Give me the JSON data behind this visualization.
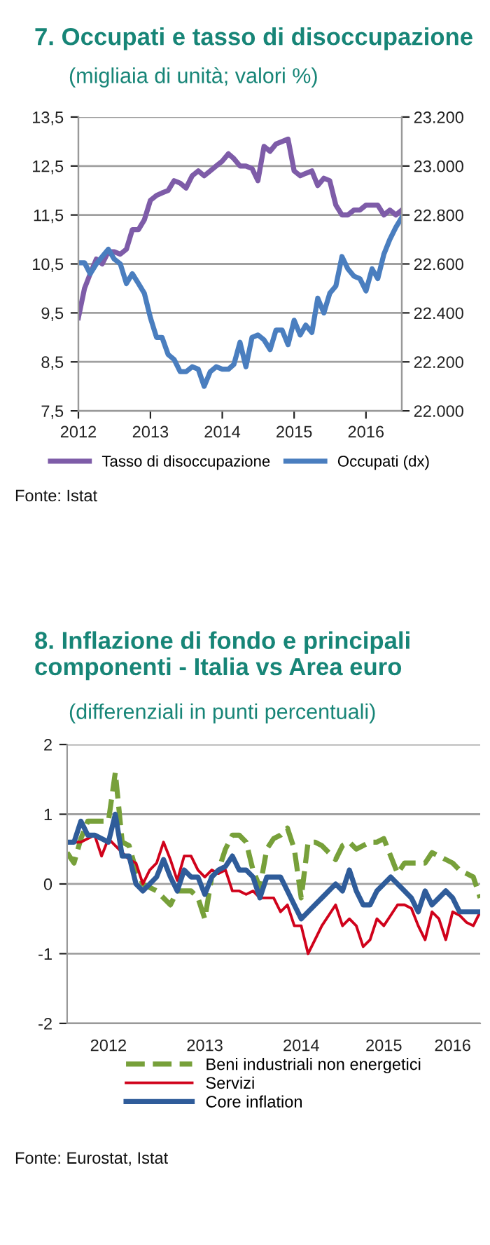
{
  "chart_data": [
    {
      "type": "line",
      "title": "7. Occupati e tasso di disoccupazione",
      "subtitle": "(migliaia di unità; valori %)",
      "x": [
        "2012-01",
        "2012-02",
        "2012-03",
        "2012-04",
        "2012-05",
        "2012-06",
        "2012-07",
        "2012-08",
        "2012-09",
        "2012-10",
        "2012-11",
        "2012-12",
        "2013-01",
        "2013-02",
        "2013-03",
        "2013-04",
        "2013-05",
        "2013-06",
        "2013-07",
        "2013-08",
        "2013-09",
        "2013-10",
        "2013-11",
        "2013-12",
        "2014-01",
        "2014-02",
        "2014-03",
        "2014-04",
        "2014-05",
        "2014-06",
        "2014-07",
        "2014-08",
        "2014-09",
        "2014-10",
        "2014-11",
        "2014-12",
        "2015-01",
        "2015-02",
        "2015-03",
        "2015-04",
        "2015-05",
        "2015-06",
        "2015-07",
        "2015-08",
        "2015-09",
        "2015-10",
        "2015-11",
        "2015-12",
        "2016-01",
        "2016-02",
        "2016-03",
        "2016-04",
        "2016-05",
        "2016-06",
        "2016-07"
      ],
      "series": [
        {
          "name": "Tasso di disoccupazione",
          "color": "#7e5ca8",
          "values": [
            9.4,
            10.0,
            10.3,
            10.6,
            10.5,
            10.75,
            10.75,
            10.7,
            10.8,
            11.2,
            11.2,
            11.4,
            11.8,
            11.9,
            11.95,
            12.0,
            12.2,
            12.15,
            12.05,
            12.3,
            12.4,
            12.3,
            12.4,
            12.5,
            12.6,
            12.75,
            12.65,
            12.5,
            12.5,
            12.45,
            12.2,
            12.9,
            12.8,
            12.95,
            13.0,
            13.05,
            12.4,
            12.3,
            12.35,
            12.4,
            12.1,
            12.25,
            12.2,
            11.7,
            11.5,
            11.5,
            11.6,
            11.6,
            11.7,
            11.7,
            11.7,
            11.5,
            11.6,
            11.5,
            11.6
          ]
        },
        {
          "name": "Occupati (dx)",
          "color": "#4a7ebf",
          "axis": "y2",
          "values": [
            22605,
            22605,
            22560,
            22600,
            22630,
            22660,
            22620,
            22600,
            22520,
            22560,
            22520,
            22480,
            22380,
            22300,
            22300,
            22230,
            22210,
            22160,
            22160,
            22180,
            22170,
            22100,
            22160,
            22180,
            22170,
            22170,
            22190,
            22280,
            22180,
            22300,
            22310,
            22290,
            22250,
            22330,
            22330,
            22270,
            22370,
            22310,
            22350,
            22320,
            22460,
            22400,
            22480,
            22510,
            22630,
            22580,
            22550,
            22540,
            22490,
            22580,
            22540,
            22640,
            22700,
            22750,
            22790
          ]
        }
      ],
      "xlim": [
        "2012-01",
        "2016-07"
      ],
      "xticks": [
        {
          "value": "2012-01",
          "label": "2012"
        },
        {
          "value": "2013-01",
          "label": "2013"
        },
        {
          "value": "2014-01",
          "label": "2014"
        },
        {
          "value": "2015-01",
          "label": "2015"
        },
        {
          "value": "2016-01",
          "label": "2016"
        }
      ],
      "ylim": [
        7.5,
        13.5
      ],
      "yticks": [
        {
          "value": 7.5,
          "label": "7,5"
        },
        {
          "value": 8.5,
          "label": "8,5"
        },
        {
          "value": 9.5,
          "label": "9,5"
        },
        {
          "value": 10.5,
          "label": "10,5"
        },
        {
          "value": 11.5,
          "label": "11,5"
        },
        {
          "value": 12.5,
          "label": "12,5"
        },
        {
          "value": 13.5,
          "label": "13,5"
        }
      ],
      "y2lim": [
        22000,
        23200
      ],
      "y2ticks": [
        {
          "value": 22000,
          "label": "22.000"
        },
        {
          "value": 22200,
          "label": "22.200"
        },
        {
          "value": 22400,
          "label": "22.400"
        },
        {
          "value": 22600,
          "label": "22.600"
        },
        {
          "value": 22800,
          "label": "22.800"
        },
        {
          "value": 23000,
          "label": "23.000"
        },
        {
          "value": 23200,
          "label": "23.200"
        }
      ],
      "grid": "y",
      "legend": "bottom",
      "line_style": "solid",
      "marker": "none",
      "annotations": [
        "Fonte: Istat"
      ]
    },
    {
      "type": "line",
      "title": "8. Inflazione di fondo e principali componenti - Italia vs Area euro",
      "subtitle": "(differenziali in punti percentuali)",
      "categories": [
        null,
        null,
        null,
        null,
        null,
        null,
        "2012",
        null,
        null,
        null,
        null,
        null,
        null,
        null,
        null,
        null,
        null,
        null,
        null,
        null,
        "2013",
        null,
        null,
        null,
        null,
        null,
        null,
        null,
        null,
        null,
        null,
        null,
        null,
        null,
        "2014",
        null,
        null,
        null,
        null,
        null,
        null,
        null,
        null,
        null,
        null,
        null,
        "2015",
        null,
        null,
        null,
        null,
        null,
        null,
        null,
        null,
        null,
        "2016",
        null,
        null,
        null,
        null
      ],
      "series": [
        {
          "name": "Beni industriali non energetici",
          "color": "#77a03a",
          "line_style": "dashed",
          "values": [
            0.45,
            0.3,
            0.65,
            0.9,
            0.9,
            0.9,
            0.9,
            1.6,
            0.6,
            0.55,
            0.2,
            0.0,
            -0.05,
            -0.1,
            -0.2,
            -0.3,
            -0.1,
            -0.1,
            -0.1,
            -0.2,
            -0.5,
            0.1,
            0.2,
            0.5,
            0.7,
            0.7,
            0.6,
            0.2,
            -0.05,
            0.5,
            0.65,
            0.7,
            0.8,
            0.5,
            -0.2,
            0.6,
            0.6,
            0.55,
            0.45,
            0.35,
            0.55,
            0.6,
            0.5,
            0.55,
            0.6,
            0.6,
            0.65,
            0.4,
            0.15,
            0.3,
            0.3,
            0.3,
            0.3,
            0.45,
            0.4,
            0.35,
            0.3,
            0.2,
            0.15,
            0.1,
            -0.2
          ]
        },
        {
          "name": "Servizi",
          "color": "#d0021b",
          "line_style": "solid",
          "values": [
            null,
            0.6,
            0.6,
            0.65,
            0.7,
            0.4,
            0.65,
            0.55,
            0.45,
            0.35,
            0.3,
            0.0,
            0.2,
            0.3,
            0.6,
            0.35,
            0.05,
            0.4,
            0.4,
            0.2,
            0.1,
            0.2,
            0.15,
            0.2,
            -0.1,
            -0.1,
            -0.15,
            -0.1,
            -0.2,
            -0.2,
            -0.2,
            -0.4,
            -0.3,
            -0.6,
            -0.6,
            -1.0,
            -0.8,
            -0.6,
            -0.45,
            -0.3,
            -0.6,
            -0.5,
            -0.6,
            -0.9,
            -0.8,
            -0.5,
            -0.6,
            -0.45,
            -0.3,
            -0.3,
            -0.35,
            -0.6,
            -0.8,
            -0.4,
            -0.5,
            -0.8,
            -0.4,
            -0.45,
            -0.55,
            -0.6,
            -0.4
          ]
        },
        {
          "name": "Core inflation",
          "color": "#2f5c9a",
          "line_style": "solid",
          "values": [
            0.6,
            0.6,
            0.9,
            0.7,
            0.7,
            0.65,
            0.6,
            1.0,
            0.4,
            0.4,
            0.0,
            -0.1,
            0.0,
            0.1,
            0.35,
            0.1,
            -0.1,
            0.2,
            0.1,
            0.1,
            -0.15,
            0.1,
            0.2,
            0.25,
            0.4,
            0.2,
            0.2,
            0.1,
            -0.2,
            0.1,
            0.1,
            0.1,
            -0.1,
            -0.3,
            -0.5,
            -0.4,
            -0.3,
            -0.2,
            -0.1,
            0.0,
            -0.1,
            0.2,
            -0.1,
            -0.3,
            -0.3,
            -0.1,
            0.0,
            0.1,
            0.0,
            -0.1,
            -0.2,
            -0.4,
            -0.1,
            -0.3,
            -0.2,
            -0.1,
            -0.2,
            -0.4,
            -0.4,
            -0.4,
            -0.4
          ]
        }
      ],
      "ylim": [
        -2,
        2
      ],
      "yticks": [
        -2,
        -1,
        0,
        1,
        2
      ],
      "grid": "y",
      "legend": "bottom",
      "marker": "none",
      "annotations": [
        "Fonte: Eurostat, Istat"
      ]
    }
  ]
}
